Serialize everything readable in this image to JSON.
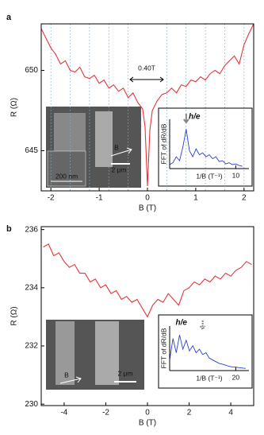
{
  "chart_data": [
    {
      "type": "line",
      "label": "a",
      "xlabel": "B (T)",
      "ylabel": "R (Ω)",
      "x": [
        -2.2,
        -2.1,
        -2.0,
        -1.9,
        -1.8,
        -1.7,
        -1.6,
        -1.5,
        -1.4,
        -1.3,
        -1.2,
        -1.1,
        -1.0,
        -0.9,
        -0.8,
        -0.7,
        -0.6,
        -0.5,
        -0.4,
        -0.3,
        -0.2,
        -0.1,
        -0.05,
        0,
        0.05,
        0.1,
        0.2,
        0.3,
        0.4,
        0.5,
        0.6,
        0.7,
        0.8,
        0.9,
        1.0,
        1.1,
        1.2,
        1.3,
        1.4,
        1.5,
        1.6,
        1.7,
        1.8,
        1.9,
        2.0,
        2.1,
        2.2
      ],
      "series": [
        {
          "color": "#e8333a",
          "values": [
            652.6,
            652.0,
            651.4,
            651.0,
            650.4,
            650.6,
            650.0,
            649.9,
            650.2,
            649.6,
            649.5,
            649.7,
            649.2,
            649.4,
            648.9,
            649.1,
            648.7,
            648.9,
            648.3,
            648.6,
            648.0,
            647.6,
            646.5,
            642.8,
            646.3,
            647.5,
            648.1,
            648.5,
            648.6,
            648.9,
            648.6,
            649.1,
            649.0,
            649.4,
            649.3,
            649.6,
            649.4,
            649.8,
            650.0,
            649.8,
            650.3,
            650.6,
            650.9,
            650.4,
            651.6,
            652.3,
            652.9
          ]
        }
      ],
      "xlim": [
        -2.2,
        2.2
      ],
      "ylim": [
        642.5,
        652.9
      ],
      "xticks": [
        -2,
        -1,
        0,
        1,
        2
      ],
      "yticks": [
        645,
        650
      ],
      "guide_lines": [
        -2.0,
        -1.6,
        -1.2,
        -0.8,
        -0.4,
        0.4,
        0.8,
        1.2,
        1.6,
        2.0
      ],
      "annotations": [
        "0.40T",
        "200 nm",
        "2 μm",
        "B"
      ]
    },
    {
      "type": "line",
      "xlabel": "1/B (T⁻¹)",
      "ylabel": "FFT of dR/dB",
      "x": [
        0,
        0.5,
        1,
        1.5,
        2,
        2.5,
        3,
        3.5,
        4,
        4.5,
        5,
        5.5,
        6,
        6.5,
        7,
        7.5,
        8,
        8.5,
        9,
        9.5,
        10,
        10.5,
        11
      ],
      "series": [
        {
          "color": "#2a3fd0",
          "values": [
            0.1,
            0.15,
            0.3,
            0.2,
            0.55,
            1.0,
            0.45,
            0.3,
            0.5,
            0.35,
            0.4,
            0.3,
            0.35,
            0.25,
            0.3,
            0.18,
            0.2,
            0.12,
            0.15,
            0.1,
            0.12,
            0.08,
            0.06
          ]
        }
      ],
      "xlim": [
        0,
        12
      ],
      "ylim": [
        0,
        1.25
      ],
      "xticks": [
        10
      ],
      "marker_x": 2.5,
      "annotations": [
        "h/e"
      ]
    },
    {
      "type": "line",
      "label": "b",
      "xlabel": "B (T)",
      "ylabel": "R (Ω)",
      "x": [
        -5,
        -4.75,
        -4.5,
        -4.25,
        -4,
        -3.75,
        -3.5,
        -3.25,
        -3,
        -2.75,
        -2.5,
        -2.25,
        -2,
        -1.75,
        -1.5,
        -1.25,
        -1,
        -0.75,
        -0.5,
        -0.25,
        0,
        0.25,
        0.5,
        0.75,
        1,
        1.25,
        1.5,
        1.75,
        2,
        2.25,
        2.5,
        2.75,
        3,
        3.25,
        3.5,
        3.75,
        4,
        4.25,
        4.5,
        4.75,
        5
      ],
      "series": [
        {
          "color": "#e8333a",
          "values": [
            235.4,
            235.5,
            235.1,
            235.2,
            234.9,
            234.7,
            234.8,
            234.5,
            234.5,
            234.2,
            234.3,
            234.0,
            234.1,
            233.8,
            233.9,
            233.6,
            233.7,
            233.5,
            233.6,
            233.3,
            233.0,
            233.4,
            233.6,
            233.5,
            233.8,
            233.6,
            233.4,
            233.9,
            234.0,
            234.2,
            234.1,
            234.3,
            234.2,
            234.4,
            234.3,
            234.5,
            234.4,
            234.6,
            234.7,
            234.9,
            234.8
          ]
        }
      ],
      "xlim": [
        -5.1,
        5.1
      ],
      "ylim": [
        229.95,
        236.1
      ],
      "xticks": [
        -4,
        -2,
        0,
        2,
        4
      ],
      "yticks": [
        230,
        232,
        234,
        236
      ],
      "annotations": [
        "2 μm",
        "B"
      ]
    },
    {
      "type": "line",
      "xlabel": "1/B (T⁻¹)",
      "ylabel": "FFT of dR/dB",
      "x": [
        0,
        1,
        2,
        3,
        4,
        5,
        6,
        7,
        8,
        9,
        10,
        11,
        12,
        13,
        14,
        15,
        16,
        17,
        18,
        19,
        20,
        21,
        22,
        23
      ],
      "series": [
        {
          "color": "#2a3fd0",
          "values": [
            0.3,
            0.9,
            0.5,
            1.0,
            0.6,
            0.85,
            0.55,
            0.7,
            0.5,
            0.6,
            0.45,
            0.5,
            0.35,
            0.3,
            0.25,
            0.2,
            0.18,
            0.15,
            0.12,
            0.1,
            0.1,
            0.08,
            0.07,
            0.06
          ]
        }
      ],
      "xlim": [
        0,
        24
      ],
      "ylim": [
        0,
        1.25
      ],
      "xticks": [
        20
      ],
      "marker_x": 10,
      "annotations": [
        "h/e"
      ]
    }
  ]
}
